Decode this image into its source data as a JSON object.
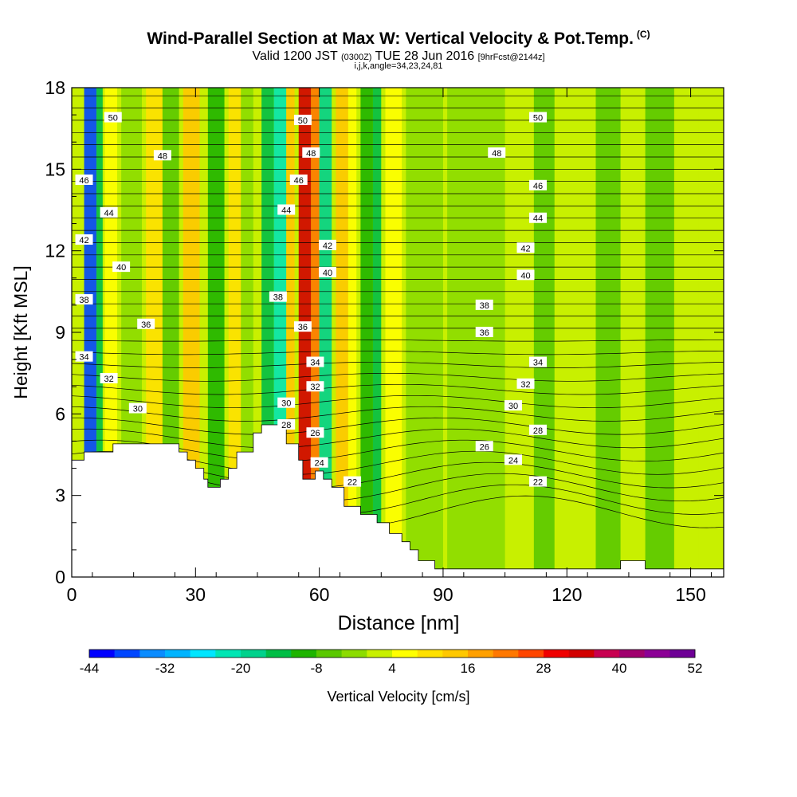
{
  "header": {
    "title": "Wind-Parallel Section at Max W: Vertical Velocity & Pot.Temp.",
    "copyright": "(C)",
    "valid_prefix": "Valid 1200 JST",
    "valid_utc": "(0300Z)",
    "valid_date": "TUE 28 Jun 2016",
    "forecast": "[9hrFcst@2144z]",
    "indices": "i,j,k,angle=34,23,24,81"
  },
  "chart_data": {
    "type": "heatmap",
    "title": "Wind-Parallel Section at Max W: Vertical Velocity & Pot.Temp.",
    "xlabel": "Distance [nm]",
    "ylabel": "Height [Kft MSL]",
    "xlim": [
      0,
      158
    ],
    "ylim": [
      0,
      18
    ],
    "x_ticks": [
      0,
      30,
      60,
      90,
      120,
      150
    ],
    "y_ticks": [
      0,
      3,
      6,
      9,
      12,
      15,
      18
    ],
    "colorbar": {
      "label": "Vertical Velocity [cm/s]",
      "tick_labels": [
        "-44",
        "-32",
        "-20",
        "-8",
        "4",
        "16",
        "28",
        "40",
        "52"
      ],
      "colors": [
        "#0000ff",
        "#0046ff",
        "#0a8cff",
        "#00b4ff",
        "#00e6ff",
        "#00e6b4",
        "#00d28c",
        "#00be46",
        "#1eb400",
        "#5ac800",
        "#8cdc00",
        "#c8f000",
        "#ffff00",
        "#ffe100",
        "#ffc800",
        "#ffa000",
        "#ff7800",
        "#ff4600",
        "#f00000",
        "#d20000",
        "#c80050",
        "#a0006e",
        "#8c0096",
        "#6e0096"
      ]
    },
    "terrain_profile": [
      [
        0,
        4.3
      ],
      [
        3,
        4.3
      ],
      [
        3,
        4.6
      ],
      [
        10,
        4.6
      ],
      [
        10,
        4.9
      ],
      [
        26,
        4.9
      ],
      [
        26,
        4.6
      ],
      [
        28,
        4.6
      ],
      [
        28,
        4.3
      ],
      [
        30,
        4.3
      ],
      [
        30,
        4.0
      ],
      [
        32,
        4.0
      ],
      [
        32,
        3.6
      ],
      [
        33,
        3.6
      ],
      [
        33,
        3.3
      ],
      [
        36,
        3.3
      ],
      [
        36,
        3.6
      ],
      [
        38,
        3.6
      ],
      [
        38,
        4.0
      ],
      [
        40,
        4.0
      ],
      [
        40,
        4.6
      ],
      [
        44,
        4.6
      ],
      [
        44,
        5.3
      ],
      [
        46,
        5.3
      ],
      [
        46,
        5.6
      ],
      [
        52,
        5.6
      ],
      [
        52,
        4.9
      ],
      [
        55,
        4.9
      ],
      [
        55,
        4.3
      ],
      [
        56,
        4.3
      ],
      [
        56,
        3.6
      ],
      [
        59,
        3.6
      ],
      [
        59,
        3.9
      ],
      [
        61,
        3.9
      ],
      [
        61,
        3.6
      ],
      [
        63,
        3.6
      ],
      [
        63,
        3.3
      ],
      [
        66,
        3.3
      ],
      [
        66,
        2.6
      ],
      [
        70,
        2.6
      ],
      [
        70,
        2.3
      ],
      [
        74,
        2.3
      ],
      [
        74,
        2.0
      ],
      [
        77,
        2.0
      ],
      [
        77,
        1.6
      ],
      [
        80,
        1.6
      ],
      [
        80,
        1.3
      ],
      [
        82,
        1.3
      ],
      [
        82,
        1.0
      ],
      [
        84,
        1.0
      ],
      [
        84,
        0.6
      ],
      [
        88,
        0.6
      ],
      [
        88,
        0.3
      ],
      [
        90,
        0.3
      ],
      [
        90,
        0.3
      ],
      [
        133,
        0.3
      ],
      [
        133,
        0.6
      ],
      [
        139,
        0.6
      ],
      [
        139,
        0.3
      ],
      [
        158,
        0.3
      ]
    ],
    "vertical_velocity_bands": [
      {
        "x": 0.5,
        "w": 2.0,
        "v": 2
      },
      {
        "x": 3,
        "w": 3,
        "v": -38
      },
      {
        "x": 6,
        "w": 1.5,
        "v": -14
      },
      {
        "x": 8,
        "w": 3,
        "v": 4
      },
      {
        "x": 12,
        "w": 5,
        "v": -4
      },
      {
        "x": 18,
        "w": 4,
        "v": 8
      },
      {
        "x": 22,
        "w": 4,
        "v": -6
      },
      {
        "x": 27,
        "w": 4,
        "v": 14
      },
      {
        "x": 33,
        "w": 4,
        "v": -10
      },
      {
        "x": 38,
        "w": 3,
        "v": 8
      },
      {
        "x": 41,
        "w": 3,
        "v": -4
      },
      {
        "x": 46,
        "w": 3,
        "v": -14
      },
      {
        "x": 49,
        "w": 3,
        "v": -22
      },
      {
        "x": 52,
        "w": 2,
        "v": 12
      },
      {
        "x": 55,
        "w": 3,
        "v": 34
      },
      {
        "x": 58,
        "w": 2,
        "v": 22
      },
      {
        "x": 60,
        "w": 3,
        "v": -20
      },
      {
        "x": 64,
        "w": 3,
        "v": 12
      },
      {
        "x": 67,
        "w": 2,
        "v": 4
      },
      {
        "x": 70,
        "w": 3,
        "v": -10
      },
      {
        "x": 73,
        "w": 2,
        "v": -16
      },
      {
        "x": 76,
        "w": 4,
        "v": 4
      },
      {
        "x": 81,
        "w": 9,
        "v": -2
      },
      {
        "x": 91,
        "w": 14,
        "v": -4
      },
      {
        "x": 106,
        "w": 5,
        "v": 0
      },
      {
        "x": 112,
        "w": 5,
        "v": -6
      },
      {
        "x": 118,
        "w": 8,
        "v": 0
      },
      {
        "x": 127,
        "w": 6,
        "v": -6
      },
      {
        "x": 134,
        "w": 4,
        "v": 2
      },
      {
        "x": 139,
        "w": 7,
        "v": -6
      },
      {
        "x": 147,
        "w": 5,
        "v": 0
      },
      {
        "x": 152,
        "w": 5,
        "v": 2
      }
    ],
    "isentrope_labels": [
      {
        "text": "50",
        "x": 10,
        "y": 16.9
      },
      {
        "text": "50",
        "x": 56,
        "y": 16.8
      },
      {
        "text": "50",
        "x": 113,
        "y": 16.9
      },
      {
        "text": "48",
        "x": 22,
        "y": 15.5
      },
      {
        "text": "48",
        "x": 58,
        "y": 15.6
      },
      {
        "text": "48",
        "x": 103,
        "y": 15.6
      },
      {
        "text": "46",
        "x": 3,
        "y": 14.6
      },
      {
        "text": "46",
        "x": 55,
        "y": 14.6
      },
      {
        "text": "46",
        "x": 113,
        "y": 14.4
      },
      {
        "text": "44",
        "x": 9,
        "y": 13.4
      },
      {
        "text": "44",
        "x": 52,
        "y": 13.5
      },
      {
        "text": "44",
        "x": 113,
        "y": 13.2
      },
      {
        "text": "42",
        "x": 3,
        "y": 12.4
      },
      {
        "text": "42",
        "x": 62,
        "y": 12.2
      },
      {
        "text": "42",
        "x": 110,
        "y": 12.1
      },
      {
        "text": "40",
        "x": 12,
        "y": 11.4
      },
      {
        "text": "40",
        "x": 62,
        "y": 11.2
      },
      {
        "text": "40",
        "x": 110,
        "y": 11.1
      },
      {
        "text": "38",
        "x": 3,
        "y": 10.2
      },
      {
        "text": "38",
        "x": 50,
        "y": 10.3
      },
      {
        "text": "38",
        "x": 100,
        "y": 10.0
      },
      {
        "text": "36",
        "x": 18,
        "y": 9.3
      },
      {
        "text": "36",
        "x": 56,
        "y": 9.2
      },
      {
        "text": "36",
        "x": 100,
        "y": 9.0
      },
      {
        "text": "34",
        "x": 3,
        "y": 8.1
      },
      {
        "text": "34",
        "x": 59,
        "y": 7.9
      },
      {
        "text": "34",
        "x": 113,
        "y": 7.9
      },
      {
        "text": "32",
        "x": 9,
        "y": 7.3
      },
      {
        "text": "32",
        "x": 59,
        "y": 7.0
      },
      {
        "text": "32",
        "x": 110,
        "y": 7.1
      },
      {
        "text": "30",
        "x": 16,
        "y": 6.2
      },
      {
        "text": "30",
        "x": 52,
        "y": 6.4
      },
      {
        "text": "30",
        "x": 107,
        "y": 6.3
      },
      {
        "text": "28",
        "x": 52,
        "y": 5.6
      },
      {
        "text": "28",
        "x": 113,
        "y": 5.4
      },
      {
        "text": "26",
        "x": 59,
        "y": 5.3
      },
      {
        "text": "26",
        "x": 100,
        "y": 4.8
      },
      {
        "text": "24",
        "x": 60,
        "y": 4.2
      },
      {
        "text": "24",
        "x": 107,
        "y": 4.3
      },
      {
        "text": "22",
        "x": 68,
        "y": 3.5
      },
      {
        "text": "22",
        "x": 113,
        "y": 3.5
      }
    ]
  }
}
